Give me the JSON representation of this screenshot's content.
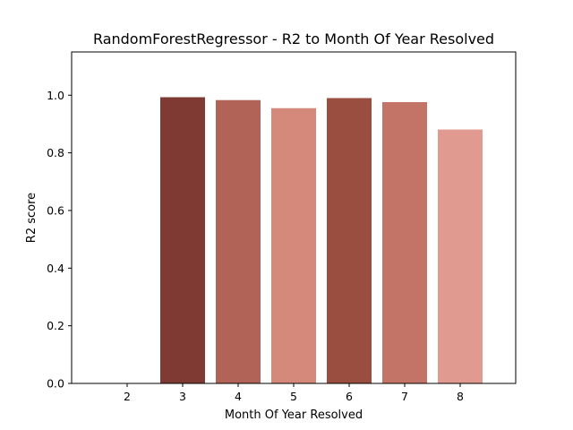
{
  "chart_data": {
    "type": "bar",
    "title": "RandomForestRegressor - R2 to Month Of Year Resolved",
    "xlabel": "Month Of Year Resolved",
    "ylabel": "R2 score",
    "categories": [
      "2",
      "3",
      "4",
      "5",
      "6",
      "7",
      "8"
    ],
    "values": [
      0.0,
      0.993,
      0.983,
      0.955,
      0.99,
      0.976,
      0.881
    ],
    "bar_colors": [
      "#7f3b33",
      "#7f3b33",
      "#b06356",
      "#d4897b",
      "#9a4e40",
      "#c47466",
      "#e09a8f"
    ],
    "ylim": [
      0,
      1.15
    ],
    "yticks": [
      "0.0",
      "0.2",
      "0.4",
      "0.6",
      "0.8",
      "1.0"
    ],
    "grid": false,
    "legend": "none"
  }
}
